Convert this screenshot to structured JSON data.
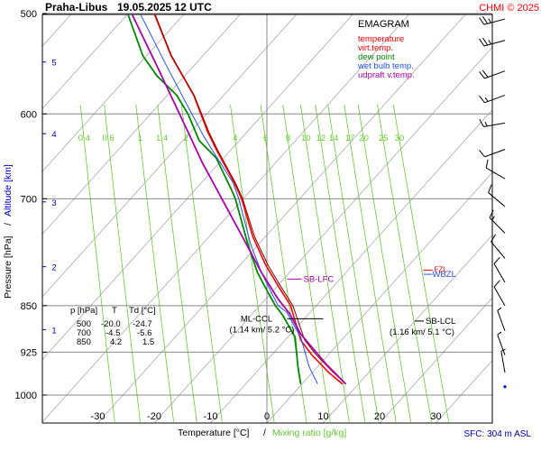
{
  "header": {
    "station": "Praha-Libus",
    "datetime": "19.05.2025 12 UTC",
    "copyright": "CHMI © 2025"
  },
  "footer": {
    "sfc": "SFC: 304 m ASL"
  },
  "colors": {
    "temperature": "#ff0000",
    "virt_temp": "#880000",
    "dew_point": "#008800",
    "wet_bulb": "#2255ee",
    "updraft": "#aa00aa",
    "mixing_ratio": "#66cc33",
    "isotherm": "#bbbbbb",
    "grid": "#888888",
    "altitude": "#0000cc"
  },
  "chart_data": {
    "type": "line",
    "title": "EMAGRAM",
    "xlabel_main": "Temperature [°C]",
    "xlabel_sep": "/",
    "xlabel_mix": "Mixing ratio [g/kg]",
    "ylabel_main": "Pressure [hPa]",
    "ylabel_sep": "/",
    "ylabel_alt": "Altitude [km]",
    "xlim": [
      -37,
      34
    ],
    "ylim": [
      1000,
      500
    ],
    "x_ticks": [
      -30,
      -20,
      -10,
      0,
      10,
      20,
      30
    ],
    "y_ticks": [
      500,
      600,
      700,
      850,
      925,
      1000
    ],
    "grid": true,
    "legend": {
      "position": "top-right",
      "entries": [
        "temperature",
        "virt.temp.",
        "dew point",
        "wet bulb temp.",
        "udpraft v.temp."
      ]
    },
    "altitude_ticks": [
      {
        "label": "1",
        "p": 888
      },
      {
        "label": "2",
        "p": 792
      },
      {
        "label": "3",
        "p": 704
      },
      {
        "label": "4",
        "p": 622
      },
      {
        "label": "5",
        "p": 546
      }
    ],
    "mixing_ratio_labels": [
      "0.4",
      "0.6",
      "1",
      "1.4",
      "2",
      "4",
      "6",
      "8",
      "10",
      "12",
      "14",
      "17",
      "20",
      "25",
      "30"
    ],
    "mixing_ratio_values": [
      0.4,
      0.6,
      1,
      1.4,
      2,
      4,
      6,
      8,
      10,
      12,
      14,
      17,
      20,
      25,
      30
    ],
    "series": [
      {
        "name": "temperature",
        "points": [
          [
            13.4,
            980
          ],
          [
            11,
            960
          ],
          [
            8,
            930
          ],
          [
            6,
            905
          ],
          [
            4.2,
            850
          ],
          [
            2,
            820
          ],
          [
            -0.2,
            790
          ],
          [
            -2.5,
            750
          ],
          [
            -4.5,
            700
          ],
          [
            -5.8,
            680
          ],
          [
            -9,
            640
          ],
          [
            -10.5,
            620
          ],
          [
            -13,
            580
          ],
          [
            -17,
            540
          ],
          [
            -20,
            500
          ]
        ]
      },
      {
        "name": "virt.temp.",
        "points": [
          [
            14,
            980
          ],
          [
            11.8,
            960
          ],
          [
            8.8,
            930
          ],
          [
            6.7,
            905
          ],
          [
            4.6,
            850
          ],
          [
            2.4,
            820
          ],
          [
            0.2,
            790
          ],
          [
            -2.2,
            750
          ],
          [
            -4.3,
            700
          ],
          [
            -5.6,
            680
          ],
          [
            -8.8,
            640
          ],
          [
            -10.3,
            620
          ],
          [
            -12.9,
            580
          ],
          [
            -16.9,
            540
          ],
          [
            -19.9,
            500
          ]
        ]
      },
      {
        "name": "dew point",
        "points": [
          [
            6,
            980
          ],
          [
            5.5,
            950
          ],
          [
            5,
            900
          ],
          [
            2.8,
            865
          ],
          [
            1.5,
            850
          ],
          [
            0.2,
            830
          ],
          [
            -1.7,
            800
          ],
          [
            -3.4,
            760
          ],
          [
            -5.6,
            700
          ],
          [
            -6.2,
            690
          ],
          [
            -9,
            650
          ],
          [
            -12,
            630
          ],
          [
            -14,
            600
          ],
          [
            -16,
            580
          ],
          [
            -19.5,
            560
          ],
          [
            -22,
            540
          ],
          [
            -24.7,
            500
          ]
        ]
      },
      {
        "name": "wet bulb temp.",
        "points": [
          [
            9,
            980
          ],
          [
            7.5,
            950
          ],
          [
            6,
            900
          ],
          [
            3.5,
            860
          ],
          [
            2,
            850
          ],
          [
            0.8,
            830
          ],
          [
            -1,
            800
          ],
          [
            -2.9,
            760
          ],
          [
            -5,
            700
          ],
          [
            -6,
            680
          ],
          [
            -9.3,
            645
          ],
          [
            -11.2,
            625
          ],
          [
            -14.2,
            590
          ],
          [
            -17.8,
            550
          ],
          [
            -22.5,
            500
          ]
        ]
      },
      {
        "name": "udpraft v.temp.",
        "points": [
          [
            14,
            980
          ],
          [
            10.5,
            945
          ],
          [
            6,
            895
          ],
          [
            4,
            862
          ],
          [
            2,
            840
          ],
          [
            -1,
            800
          ],
          [
            -4,
            755
          ],
          [
            -8,
            700
          ],
          [
            -11.5,
            655
          ],
          [
            -14,
            620
          ],
          [
            -19.5,
            550
          ],
          [
            -24,
            500
          ]
        ]
      }
    ],
    "annotations": [
      {
        "label": "SB-LFC",
        "t": 3.6,
        "p": 810
      },
      {
        "label": "ML-CCL",
        "line2": "(1.14 km/ 5.2 °C)",
        "t": 5.2,
        "p": 882
      },
      {
        "label": "SB-LCL",
        "line2": "(1.16 km/ 5.1 °C)",
        "t": 27.2,
        "p": 877
      },
      {
        "label": "WBZL",
        "t": 28.4,
        "p": 803
      },
      {
        "label": "FZL",
        "t": 28.4,
        "p": 797
      }
    ],
    "table": {
      "headers": [
        "p [hPa]",
        "T",
        "Td [°C]"
      ],
      "rows": [
        [
          "500",
          "-20.0",
          "-24.7"
        ],
        [
          "700",
          "-4.5",
          "-5.6"
        ],
        [
          "850",
          "4.2",
          "1.5"
        ]
      ]
    },
    "wind_barbs": [
      {
        "p": 505,
        "dir": 255,
        "kt": 25
      },
      {
        "p": 525,
        "dir": 255,
        "kt": 25
      },
      {
        "p": 555,
        "dir": 250,
        "kt": 20
      },
      {
        "p": 580,
        "dir": 250,
        "kt": 15
      },
      {
        "p": 610,
        "dir": 260,
        "kt": 15
      },
      {
        "p": 640,
        "dir": 250,
        "kt": 10
      },
      {
        "p": 675,
        "dir": 300,
        "kt": 10
      },
      {
        "p": 710,
        "dir": 310,
        "kt": 10
      },
      {
        "p": 745,
        "dir": 315,
        "kt": 15
      },
      {
        "p": 780,
        "dir": 320,
        "kt": 10
      },
      {
        "p": 815,
        "dir": 330,
        "kt": 10
      },
      {
        "p": 850,
        "dir": 330,
        "kt": 10
      },
      {
        "p": 890,
        "dir": 340,
        "kt": 5
      },
      {
        "p": 930,
        "dir": 340,
        "kt": 5
      },
      {
        "p": 960,
        "dir": 350,
        "kt": 5
      }
    ]
  }
}
